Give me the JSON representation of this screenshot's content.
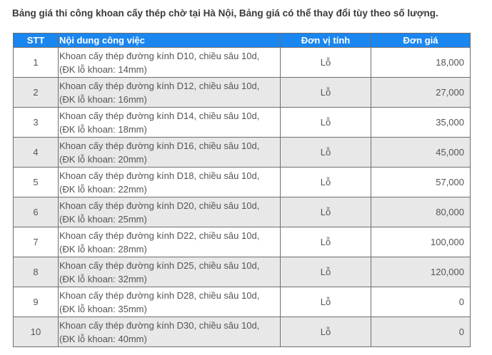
{
  "heading": "Bảng giá thi công khoan cấy thép chờ tại Hà Nội, Bảng giá có thể thay đổi tùy theo số lượng.",
  "table": {
    "headers": {
      "stt": "STT",
      "desc": "Nội dung công việc",
      "unit": "Đơn vị tính",
      "price": "Đơn giá"
    },
    "rows": [
      {
        "stt": "1",
        "desc1": "Khoan cấy thép đường kính D10, chiều sâu 10d,",
        "desc2": "(ĐK lỗ khoan: 14mm)",
        "unit": "Lỗ",
        "price": "18,000"
      },
      {
        "stt": "2",
        "desc1": "Khoan cấy thép đường kính D12, chiều sâu 10d,",
        "desc2": "(ĐK lỗ khoan: 16mm)",
        "unit": "Lỗ",
        "price": "27,000"
      },
      {
        "stt": "3",
        "desc1": "Khoan cấy thép đường kính D14, chiều sâu 10d,",
        "desc2": "(ĐK lỗ khoan: 18mm)",
        "unit": "Lỗ",
        "price": "35,000"
      },
      {
        "stt": "4",
        "desc1": "Khoan cấy thép đường kính D16, chiều sâu 10d,",
        "desc2": "(ĐK lỗ khoan: 20mm)",
        "unit": "Lỗ",
        "price": "45,000"
      },
      {
        "stt": "5",
        "desc1": "Khoan cấy thép đường kính D18, chiều sâu 10d,",
        "desc2": "(ĐK lỗ khoan: 22mm)",
        "unit": "Lỗ",
        "price": "57,000"
      },
      {
        "stt": "6",
        "desc1": "Khoan cấy thép đường kính D20, chiều sâu 10d,",
        "desc2": "(ĐK lỗ khoan: 25mm)",
        "unit": "Lỗ",
        "price": "80,000"
      },
      {
        "stt": "7",
        "desc1": "Khoan cấy thép đường kính D22, chiều sâu 10d,",
        "desc2": "(ĐK lỗ khoan: 28mm)",
        "unit": "Lỗ",
        "price": "100,000"
      },
      {
        "stt": "8",
        "desc1": "Khoan cấy thép đường kính D25, chiều sâu 10d,",
        "desc2": "(ĐK lỗ khoan: 32mm)",
        "unit": "Lỗ",
        "price": "120,000"
      },
      {
        "stt": "9",
        "desc1": "Khoan cấy thép đường kính D28, chiều sâu 10d,",
        "desc2": "(ĐK lỗ khoan: 35mm)",
        "unit": "Lỗ",
        "price": "0"
      },
      {
        "stt": "10",
        "desc1": "Khoan cấy thép đường kính D30, chiều sâu 10d,",
        "desc2": "(ĐK lỗ khoan: 40mm)",
        "unit": "Lỗ",
        "price": "0"
      }
    ]
  },
  "colors": {
    "header_bg": "#1a86f0",
    "header_text": "#ffffff",
    "row_even_bg": "#e8e8e8",
    "row_odd_bg": "#ffffff",
    "border": "#6e6e6e"
  }
}
